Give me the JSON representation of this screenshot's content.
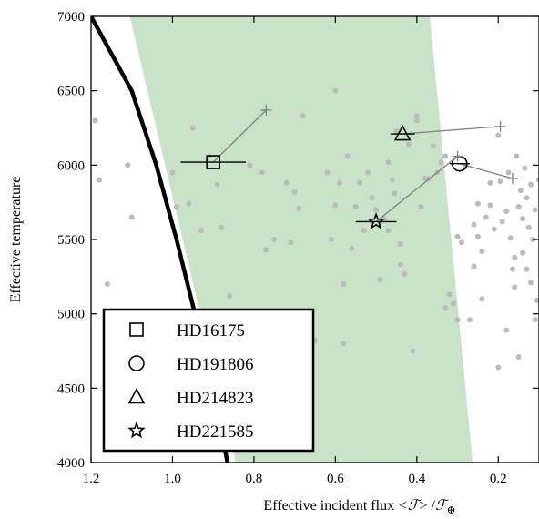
{
  "chart_data": {
    "type": "scatter",
    "xlabel": "Effective incident flux",
    "xlabel_math": {
      "bracket_open": "<",
      "symbol": "ℱ",
      "bracket_close": ">",
      "slash": "/",
      "subscript": "⊕"
    },
    "ylabel": "Effective temperature",
    "xlim": [
      1.2,
      0.1
    ],
    "ylim": [
      4000,
      7000
    ],
    "x_ticks": [
      "1.2",
      "1.0",
      "0.8",
      "0.6",
      "0.4",
      "0.2"
    ],
    "x_tick_values": [
      1.2,
      1.0,
      0.8,
      0.6,
      0.4,
      0.2
    ],
    "y_ticks": [
      "4000",
      "4500",
      "5000",
      "5500",
      "6000",
      "6500",
      "7000"
    ],
    "y_tick_values": [
      4000,
      4500,
      5000,
      5500,
      6000,
      6500,
      7000
    ],
    "x_axis_reversed": true,
    "grid": false,
    "legend_position": "bottom-left",
    "habitable_zone": {
      "color": "#c6e2c6",
      "polygon": [
        [
          1.105,
          7000
        ],
        [
          0.368,
          7000
        ],
        [
          0.263,
          4000
        ],
        [
          0.845,
          4000
        ]
      ]
    },
    "boundary_curve": {
      "color": "#000000",
      "points": [
        [
          1.2,
          7000
        ],
        [
          1.1,
          6500
        ],
        [
          1.04,
          6000
        ],
        [
          0.99,
          5500
        ],
        [
          0.945,
          5000
        ],
        [
          0.9,
          4500
        ],
        [
          0.865,
          4000
        ]
      ]
    },
    "background_stars": {
      "color": "#bbbbbb",
      "points": [
        [
          1.19,
          6300
        ],
        [
          1.18,
          5900
        ],
        [
          1.11,
          6000
        ],
        [
          1.1,
          5650
        ],
        [
          1.16,
          5200
        ],
        [
          1.08,
          4810
        ],
        [
          1.0,
          5950
        ],
        [
          0.99,
          5720
        ],
        [
          0.96,
          5740
        ],
        [
          0.93,
          5560
        ],
        [
          0.95,
          6250
        ],
        [
          0.91,
          6060
        ],
        [
          0.89,
          5870
        ],
        [
          0.88,
          5580
        ],
        [
          0.86,
          5120
        ],
        [
          0.85,
          4800
        ],
        [
          0.81,
          6000
        ],
        [
          0.78,
          5950
        ],
        [
          0.77,
          5430
        ],
        [
          0.75,
          5500
        ],
        [
          0.72,
          5880
        ],
        [
          0.71,
          5480
        ],
        [
          0.7,
          5820
        ],
        [
          0.69,
          5710
        ],
        [
          0.68,
          6330
        ],
        [
          0.65,
          4820
        ],
        [
          0.62,
          5950
        ],
        [
          0.61,
          5500
        ],
        [
          0.6,
          5730
        ],
        [
          0.59,
          5880
        ],
        [
          0.58,
          5200
        ],
        [
          0.57,
          6060
        ],
        [
          0.56,
          5440
        ],
        [
          0.55,
          5720
        ],
        [
          0.54,
          5880
        ],
        [
          0.53,
          5560
        ],
        [
          0.52,
          5950
        ],
        [
          0.51,
          5780
        ],
        [
          0.5,
          5700
        ],
        [
          0.49,
          5230
        ],
        [
          0.48,
          5640
        ],
        [
          0.47,
          6020
        ],
        [
          0.46,
          5900
        ],
        [
          0.455,
          5810
        ],
        [
          0.45,
          6230
        ],
        [
          0.44,
          5470
        ],
        [
          0.43,
          5270
        ],
        [
          0.42,
          6140
        ],
        [
          0.41,
          4750
        ],
        [
          0.4,
          6300
        ],
        [
          0.39,
          5720
        ],
        [
          0.38,
          5910
        ],
        [
          0.37,
          5910
        ],
        [
          0.36,
          6130
        ],
        [
          0.35,
          5950
        ],
        [
          0.34,
          6020
        ],
        [
          0.33,
          6060
        ],
        [
          0.32,
          5130
        ],
        [
          0.31,
          5070
        ],
        [
          0.3,
          4960
        ],
        [
          0.29,
          5480
        ],
        [
          0.28,
          5990
        ],
        [
          0.27,
          4960
        ],
        [
          0.26,
          5600
        ],
        [
          0.25,
          5520
        ],
        [
          0.24,
          5420
        ],
        [
          0.23,
          5650
        ],
        [
          0.22,
          5730
        ],
        [
          0.21,
          5570
        ],
        [
          0.2,
          6200
        ],
        [
          0.195,
          5890
        ],
        [
          0.19,
          5620
        ],
        [
          0.18,
          5690
        ],
        [
          0.175,
          5950
        ],
        [
          0.17,
          5510
        ],
        [
          0.165,
          5300
        ],
        [
          0.16,
          5380
        ],
        [
          0.155,
          6060
        ],
        [
          0.15,
          5720
        ],
        [
          0.145,
          5830
        ],
        [
          0.14,
          5410
        ],
        [
          0.135,
          5980
        ],
        [
          0.13,
          5300
        ],
        [
          0.125,
          5580
        ],
        [
          0.12,
          5870
        ],
        [
          0.115,
          5500
        ],
        [
          0.11,
          5700
        ],
        [
          0.105,
          5090
        ],
        [
          0.13,
          5780
        ],
        [
          0.12,
          5210
        ],
        [
          0.14,
          5640
        ],
        [
          0.16,
          5180
        ],
        [
          0.18,
          4890
        ],
        [
          0.2,
          4640
        ],
        [
          0.15,
          4710
        ],
        [
          0.11,
          4960
        ],
        [
          0.1,
          5900
        ],
        [
          0.22,
          5880
        ],
        [
          0.24,
          5100
        ],
        [
          0.26,
          5320
        ],
        [
          0.3,
          5520
        ],
        [
          0.25,
          5740
        ],
        [
          0.58,
          4800
        ],
        [
          0.4,
          6330
        ],
        [
          0.6,
          6500
        ],
        [
          0.33,
          5040
        ],
        [
          0.47,
          5560
        ],
        [
          0.44,
          5330
        ]
      ]
    },
    "highlighted_stars": [
      {
        "name": "HD16175",
        "marker": "square",
        "x": 0.9,
        "y": 6020,
        "xerr": [
          0.08,
          0.08
        ],
        "connector_to": [
          0.77,
          6370
        ]
      },
      {
        "name": "HD191806",
        "marker": "circle",
        "x": 0.295,
        "y": 6010,
        "xerr": [
          0.025,
          0.025
        ],
        "connector_to": [
          0.165,
          5910
        ]
      },
      {
        "name": "HD214823",
        "marker": "triangle",
        "x": 0.435,
        "y": 6210,
        "xerr": [
          0.03,
          0.03
        ],
        "connector_to": [
          0.195,
          6260
        ]
      },
      {
        "name": "HD221585",
        "marker": "star",
        "x": 0.5,
        "y": 5620,
        "xerr": [
          0.05,
          0.05
        ],
        "connector_to": [
          0.3,
          6060
        ]
      }
    ],
    "legend": [
      "HD16175",
      "HD191806",
      "HD214823",
      "HD221585"
    ]
  }
}
